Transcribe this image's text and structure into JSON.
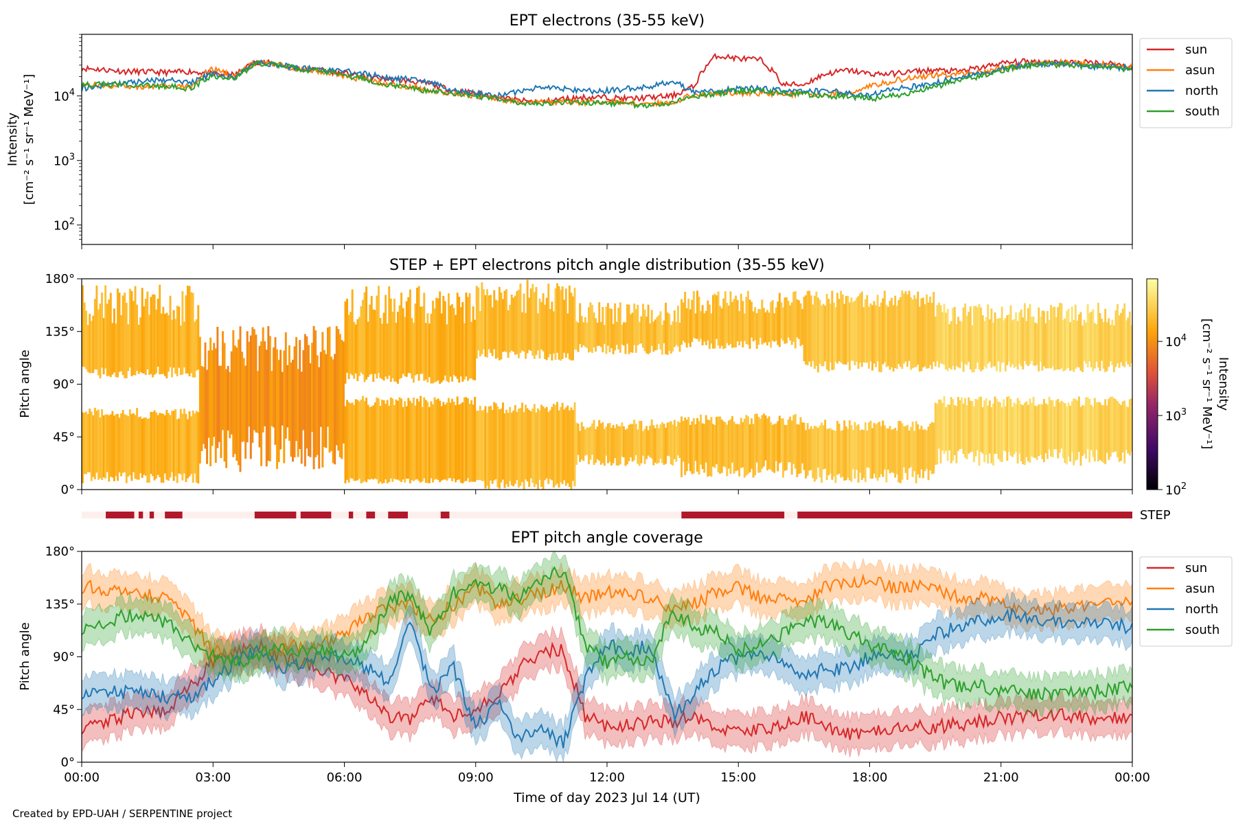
{
  "footer": "Created by EPD-UAH / SERPENTINE project",
  "colors": {
    "sun": "#d62728",
    "asun": "#ff7f0e",
    "north": "#1f77b4",
    "south": "#2ca02c",
    "step_on": "#b2182b",
    "step_off": "#fdf0ec"
  },
  "chart_data": [
    {
      "type": "line",
      "title": "EPT electrons (35-55 keV)",
      "xlabel": "",
      "ylabel": [
        "Intensity",
        "[cm⁻² s⁻¹ sr⁻¹ MeV⁻¹]"
      ],
      "yscale": "log",
      "ylim": [
        50,
        90000
      ],
      "yticks": [
        {
          "value": 100,
          "base": "10",
          "exp": "2"
        },
        {
          "value": 1000,
          "base": "10",
          "exp": "3"
        },
        {
          "value": 10000,
          "base": "10",
          "exp": "4"
        }
      ],
      "x": [
        0,
        1,
        2,
        2.5,
        3,
        3.5,
        4,
        4.5,
        5,
        5.5,
        6,
        6.5,
        7,
        7.5,
        8,
        8.5,
        9,
        9.5,
        10,
        10.5,
        11,
        11.5,
        12,
        12.5,
        13,
        13.5,
        14,
        14.5,
        15,
        15.5,
        16,
        16.5,
        17,
        17.5,
        18,
        18.5,
        19,
        19.5,
        20,
        20.5,
        21,
        21.5,
        22,
        22.5,
        23,
        23.5,
        24
      ],
      "series": [
        {
          "name": "sun",
          "values": [
            27000,
            24000,
            23000,
            24000,
            22000,
            21000,
            34000,
            31000,
            26000,
            25000,
            22000,
            20000,
            18000,
            17000,
            15000,
            12000,
            11000,
            9500,
            8500,
            8000,
            9000,
            9500,
            9500,
            9000,
            9500,
            10000,
            14000,
            42000,
            38000,
            36000,
            15000,
            15000,
            22000,
            25000,
            22000,
            22000,
            24000,
            25000,
            24000,
            27000,
            32000,
            34000,
            34000,
            33000,
            33000,
            32000,
            28000
          ]
        },
        {
          "name": "asun",
          "values": [
            15000,
            14000,
            14000,
            14000,
            26000,
            20000,
            33000,
            30000,
            26000,
            24000,
            20000,
            18000,
            15000,
            14000,
            12000,
            11000,
            10000,
            9000,
            8000,
            8000,
            8000,
            8000,
            8000,
            8000,
            7500,
            8000,
            10500,
            11000,
            11000,
            11000,
            11000,
            10500,
            10500,
            11000,
            14000,
            17000,
            19000,
            21000,
            22000,
            23000,
            27000,
            30000,
            33000,
            33000,
            31000,
            30000,
            27000
          ]
        },
        {
          "name": "north",
          "values": [
            13000,
            16000,
            18000,
            16000,
            22000,
            19000,
            33000,
            30000,
            27000,
            25000,
            24000,
            22000,
            19000,
            18000,
            16000,
            12000,
            11000,
            10000,
            11500,
            14000,
            13000,
            12000,
            12000,
            13000,
            14000,
            17000,
            11000,
            12000,
            13000,
            13000,
            12000,
            12000,
            12000,
            11000,
            10000,
            13000,
            14000,
            16000,
            19000,
            22000,
            26000,
            30000,
            31000,
            31000,
            29000,
            28000,
            27000
          ]
        },
        {
          "name": "south",
          "values": [
            15000,
            15000,
            14000,
            13000,
            21000,
            18000,
            32000,
            30000,
            26000,
            24000,
            21000,
            18000,
            15000,
            13000,
            12000,
            11000,
            10000,
            9000,
            8000,
            7500,
            8000,
            8000,
            7500,
            7500,
            7000,
            8000,
            10000,
            11000,
            12000,
            12000,
            11000,
            10500,
            10000,
            10000,
            9000,
            10000,
            11000,
            14000,
            17000,
            20000,
            25000,
            29000,
            31000,
            30000,
            29000,
            27000,
            26000
          ]
        }
      ],
      "legend": {
        "position": "right-outside",
        "entries": [
          "sun",
          "asun",
          "north",
          "south"
        ]
      },
      "xlim": [
        0,
        24
      ]
    },
    {
      "type": "heatmap",
      "title": "STEP + EPT electrons pitch angle distribution (35-55 keV)",
      "ylabel": "Pitch angle",
      "yticks": [
        "0°",
        "45°",
        "90°",
        "135°",
        "180°"
      ],
      "ylim": [
        0,
        180
      ],
      "colorbar": {
        "label": [
          "Intensity",
          "[cm⁻² s⁻¹ sr⁻¹ MeV⁻¹]"
        ],
        "scale": "log",
        "range": [
          100,
          70000
        ],
        "ticks": [
          {
            "value": 100,
            "base": "10",
            "exp": "2"
          },
          {
            "value": 1000,
            "base": "10",
            "exp": "3"
          },
          {
            "value": 10000,
            "base": "10",
            "exp": "4"
          }
        ]
      },
      "bands": [
        {
          "x0": 0.0,
          "x1": 2.7,
          "lo": [
            5,
            15
          ],
          "hi": [
            140,
            175
          ],
          "gap": [
            65,
            100
          ],
          "intensity": 18000
        },
        {
          "x0": 2.7,
          "x1": 6.0,
          "lo": [
            15,
            55
          ],
          "hi": [
            100,
            140
          ],
          "gap": [
            0,
            0
          ],
          "intensity": 10000
        },
        {
          "x0": 6.0,
          "x1": 9.0,
          "lo": [
            5,
            10
          ],
          "hi": [
            140,
            175
          ],
          "gap": [
            75,
            95
          ],
          "intensity": 17000
        },
        {
          "x0": 9.0,
          "x1": 11.3,
          "lo": [
            0,
            10
          ],
          "hi": [
            150,
            180
          ],
          "gap": [
            70,
            115
          ],
          "intensity": 20000
        },
        {
          "x0": 11.3,
          "x1": 13.7,
          "lo": [
            20,
            30
          ],
          "hi": [
            140,
            160
          ],
          "gap": [
            55,
            120
          ],
          "intensity": 22000
        },
        {
          "x0": 13.7,
          "x1": 16.5,
          "lo": [
            10,
            25
          ],
          "hi": [
            150,
            170
          ],
          "gap": [
            60,
            125
          ],
          "intensity": 20000
        },
        {
          "x0": 16.5,
          "x1": 19.5,
          "lo": [
            5,
            20
          ],
          "hi": [
            155,
            170
          ],
          "gap": [
            55,
            105
          ],
          "intensity": 24000
        },
        {
          "x0": 19.5,
          "x1": 24.0,
          "lo": [
            20,
            35
          ],
          "hi": [
            140,
            160
          ],
          "gap": [
            75,
            105
          ],
          "intensity": 32000
        }
      ],
      "xlim": [
        0,
        24
      ]
    },
    {
      "type": "timeline",
      "label": "STEP",
      "intervals": [
        [
          0.55,
          1.2
        ],
        [
          1.3,
          1.4
        ],
        [
          1.55,
          1.65
        ],
        [
          1.9,
          2.3
        ],
        [
          3.95,
          4.9
        ],
        [
          5.0,
          5.7
        ],
        [
          6.1,
          6.2
        ],
        [
          6.5,
          6.7
        ],
        [
          7.0,
          7.45
        ],
        [
          8.2,
          8.4
        ],
        [
          13.7,
          16.05
        ],
        [
          16.35,
          24.0
        ]
      ],
      "xlim": [
        0,
        24
      ]
    },
    {
      "type": "line",
      "title": "EPT pitch angle coverage",
      "xlabel": "Time of day 2023 Jul 14 (UT)",
      "ylabel": "Pitch angle",
      "yticks": [
        "0°",
        "45°",
        "90°",
        "135°",
        "180°"
      ],
      "ylim": [
        0,
        180
      ],
      "xticks": [
        "00:00",
        "03:00",
        "06:00",
        "09:00",
        "12:00",
        "15:00",
        "18:00",
        "21:00",
        "00:00"
      ],
      "xlim": [
        0,
        24
      ],
      "x": [
        0,
        1,
        2,
        2.5,
        3,
        3.5,
        4,
        4.5,
        5,
        5.5,
        6,
        6.5,
        7,
        7.5,
        8,
        8.5,
        9,
        9.5,
        10,
        10.5,
        11,
        11.5,
        12,
        12.5,
        13,
        13.5,
        14,
        14.5,
        15,
        15.5,
        16,
        16.5,
        17,
        17.5,
        18,
        18.5,
        19,
        19.5,
        20,
        20.5,
        21,
        21.5,
        22,
        22.5,
        23,
        23.5,
        24
      ],
      "series": [
        {
          "name": "sun",
          "values": [
            30,
            40,
            45,
            65,
            85,
            95,
            100,
            90,
            85,
            80,
            70,
            60,
            40,
            35,
            55,
            40,
            45,
            55,
            80,
            95,
            95,
            40,
            30,
            32,
            35,
            35,
            40,
            30,
            25,
            30,
            30,
            40,
            30,
            25,
            25,
            28,
            30,
            30,
            32,
            35,
            38,
            38,
            40,
            40,
            38,
            38,
            38
          ]
        },
        {
          "name": "asun",
          "values": [
            150,
            145,
            140,
            120,
            95,
            90,
            90,
            95,
            100,
            100,
            110,
            125,
            130,
            135,
            120,
            135,
            150,
            135,
            140,
            145,
            150,
            140,
            145,
            145,
            140,
            130,
            135,
            145,
            150,
            140,
            140,
            135,
            150,
            155,
            155,
            150,
            150,
            150,
            140,
            140,
            135,
            132,
            130,
            132,
            135,
            138,
            140
          ]
        },
        {
          "name": "north",
          "values": [
            60,
            60,
            55,
            55,
            70,
            85,
            95,
            80,
            85,
            90,
            90,
            80,
            70,
            120,
            60,
            80,
            30,
            50,
            20,
            30,
            15,
            70,
            100,
            95,
            100,
            40,
            60,
            80,
            90,
            95,
            85,
            75,
            80,
            80,
            90,
            90,
            90,
            110,
            115,
            120,
            125,
            125,
            120,
            118,
            120,
            118,
            115
          ]
        },
        {
          "name": "south",
          "values": [
            115,
            125,
            120,
            100,
            90,
            85,
            90,
            100,
            95,
            95,
            90,
            100,
            135,
            145,
            110,
            145,
            150,
            150,
            140,
            155,
            165,
            100,
            85,
            90,
            85,
            130,
            115,
            110,
            95,
            100,
            110,
            120,
            120,
            110,
            100,
            95,
            85,
            70,
            65,
            65,
            60,
            60,
            58,
            58,
            60,
            62,
            65
          ]
        }
      ],
      "band_halfwidth": 15,
      "legend": {
        "position": "right-outside",
        "entries": [
          "sun",
          "asun",
          "north",
          "south"
        ]
      }
    }
  ]
}
